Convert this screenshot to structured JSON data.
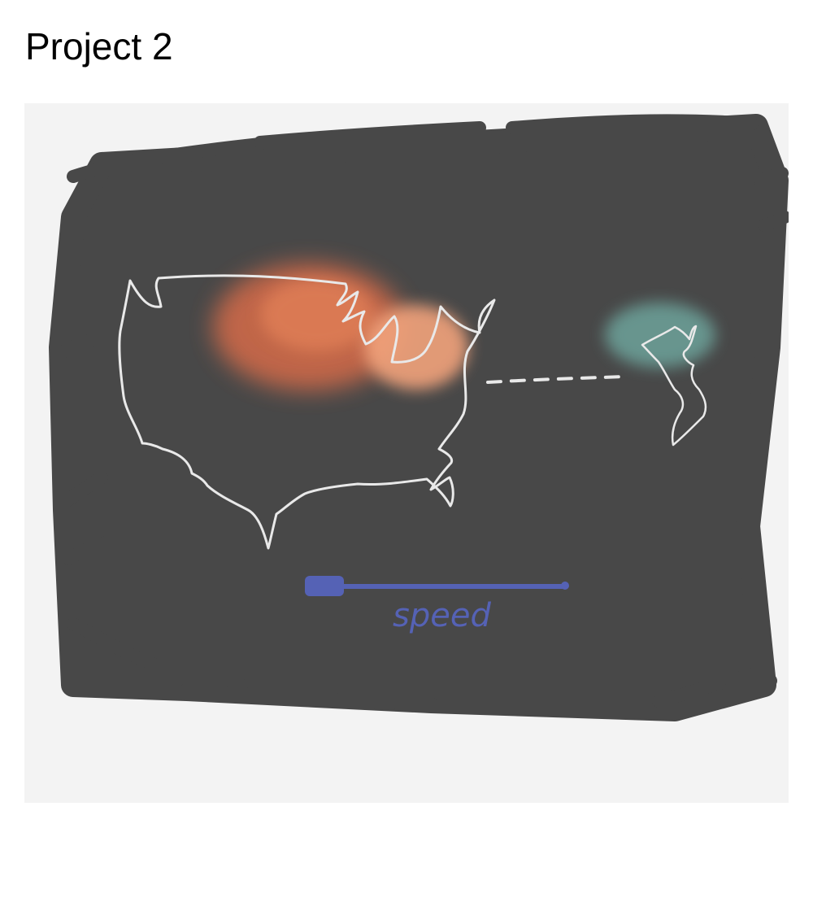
{
  "page": {
    "title": "Project 2"
  },
  "sketch": {
    "speed_label": "speed",
    "colors": {
      "paper": "#f3f3f3",
      "scribble": "#484848",
      "map_line": "#e9e9e9",
      "heat_orange": "#e8704a",
      "heat_orange_light": "#f2a37c",
      "heat_teal": "#6fa9a0",
      "slider": "#5562b5"
    }
  }
}
